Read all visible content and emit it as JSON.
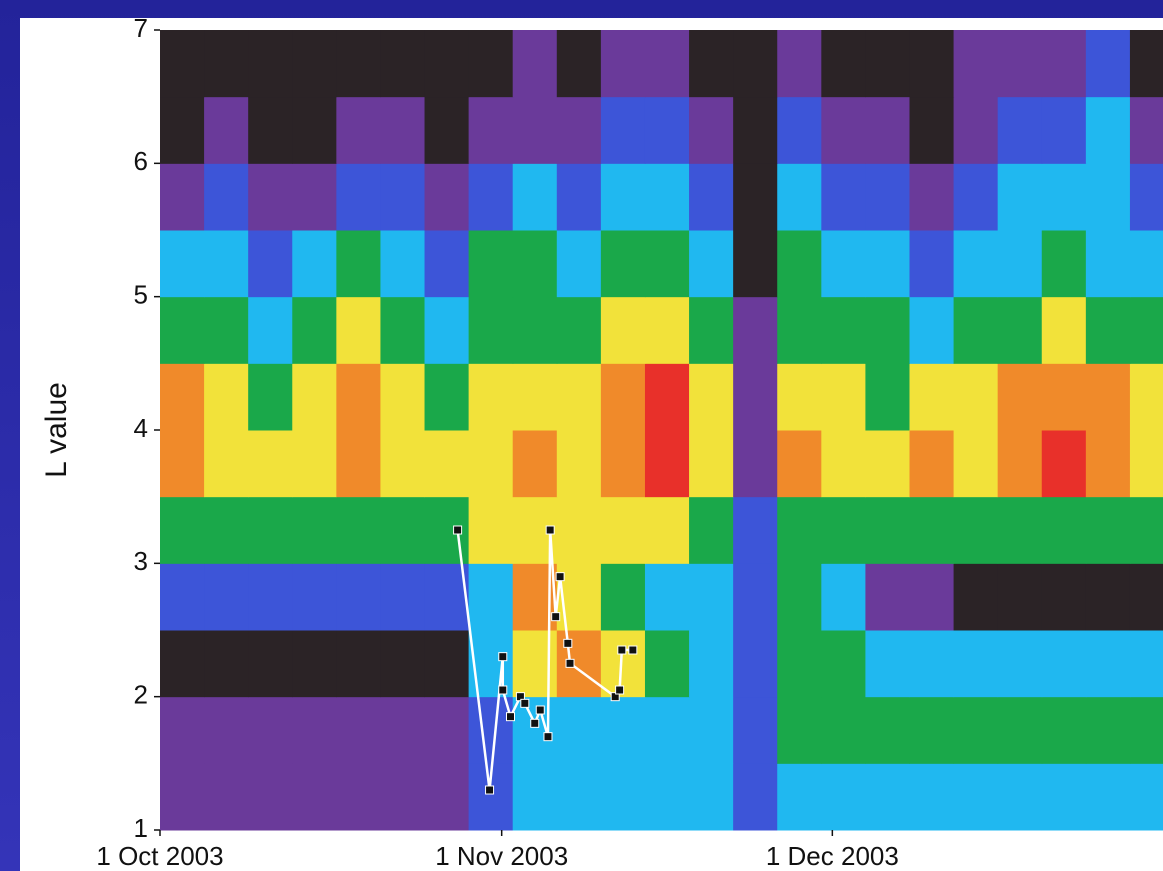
{
  "chart_data": {
    "type": "heatmap",
    "ylabel": "L value",
    "xlim": [
      0,
      91
    ],
    "xticks": [
      {
        "value": 0,
        "label": "1 Oct 2003"
      },
      {
        "value": 31,
        "label": "1 Nov 2003"
      },
      {
        "value": 61,
        "label": "1 Dec 2003"
      }
    ],
    "ylim": [
      1,
      7
    ],
    "yticks": [
      1,
      2,
      3,
      4,
      5,
      6,
      7
    ],
    "colors": [
      "#2b2326",
      "#6a3a9a",
      "#3d55d8",
      "#20b8f0",
      "#1aa84a",
      "#f2e23a",
      "#f08a2a",
      "#e8302a"
    ],
    "x": [
      0,
      4,
      8,
      12,
      16,
      20,
      24,
      28,
      32,
      36,
      40,
      44,
      48,
      52,
      56,
      60,
      64,
      68,
      72,
      76,
      80,
      84,
      88
    ],
    "y": [
      1,
      1.5,
      2,
      2.5,
      3,
      3.5,
      4,
      4.5,
      5,
      5.5,
      6,
      6.5
    ],
    "z": [
      [
        1,
        1,
        1,
        1,
        1,
        1,
        1,
        2,
        3,
        3,
        3,
        3,
        3,
        2,
        3,
        3,
        3,
        3,
        3,
        3,
        3,
        3,
        3
      ],
      [
        1,
        1,
        1,
        1,
        1,
        1,
        1,
        2,
        3,
        3,
        3,
        3,
        3,
        2,
        4,
        4,
        4,
        4,
        4,
        4,
        4,
        4,
        4
      ],
      [
        0,
        0,
        0,
        0,
        0,
        0,
        0,
        3,
        5,
        6,
        5,
        4,
        3,
        2,
        4,
        4,
        3,
        3,
        3,
        3,
        3,
        3,
        3
      ],
      [
        2,
        2,
        2,
        2,
        2,
        2,
        2,
        3,
        6,
        5,
        4,
        3,
        3,
        2,
        4,
        3,
        1,
        1,
        0,
        0,
        0,
        0,
        0
      ],
      [
        4,
        4,
        4,
        4,
        4,
        4,
        4,
        5,
        5,
        5,
        5,
        5,
        4,
        2,
        4,
        4,
        4,
        4,
        4,
        4,
        4,
        4,
        4
      ],
      [
        6,
        5,
        5,
        5,
        6,
        5,
        5,
        5,
        6,
        5,
        6,
        7,
        5,
        1,
        6,
        5,
        5,
        6,
        5,
        6,
        7,
        6,
        5
      ],
      [
        6,
        5,
        4,
        5,
        6,
        5,
        4,
        5,
        5,
        5,
        6,
        7,
        5,
        1,
        5,
        5,
        4,
        5,
        5,
        6,
        6,
        6,
        5
      ],
      [
        4,
        4,
        3,
        4,
        5,
        4,
        3,
        4,
        4,
        4,
        5,
        5,
        4,
        1,
        4,
        4,
        4,
        3,
        4,
        4,
        5,
        4,
        4
      ],
      [
        3,
        3,
        2,
        3,
        4,
        3,
        2,
        4,
        4,
        3,
        4,
        4,
        3,
        0,
        4,
        3,
        3,
        2,
        3,
        3,
        4,
        3,
        3
      ],
      [
        1,
        2,
        1,
        1,
        2,
        2,
        1,
        2,
        3,
        2,
        3,
        3,
        2,
        0,
        3,
        2,
        2,
        1,
        2,
        3,
        3,
        3,
        2
      ],
      [
        0,
        1,
        0,
        0,
        1,
        1,
        0,
        1,
        1,
        1,
        2,
        2,
        1,
        0,
        2,
        1,
        1,
        0,
        1,
        2,
        2,
        3,
        1
      ],
      [
        0,
        0,
        0,
        0,
        0,
        0,
        0,
        0,
        1,
        0,
        1,
        1,
        0,
        0,
        1,
        0,
        0,
        0,
        1,
        1,
        1,
        2,
        0
      ]
    ],
    "plasmapause": {
      "color": "#ffffff",
      "x": [
        27.0,
        29.9,
        31.1,
        31.1,
        31.8,
        32.7,
        33.1,
        34.0,
        34.5,
        35.2,
        35.4,
        35.9,
        36.3,
        37.0,
        37.2,
        41.3,
        41.7,
        41.9,
        42.9
      ],
      "y": [
        3.25,
        1.3,
        2.3,
        2.05,
        1.85,
        2.0,
        1.95,
        1.8,
        1.9,
        1.7,
        3.25,
        2.6,
        2.9,
        2.4,
        2.25,
        2.0,
        2.05,
        2.35,
        2.35
      ]
    }
  }
}
